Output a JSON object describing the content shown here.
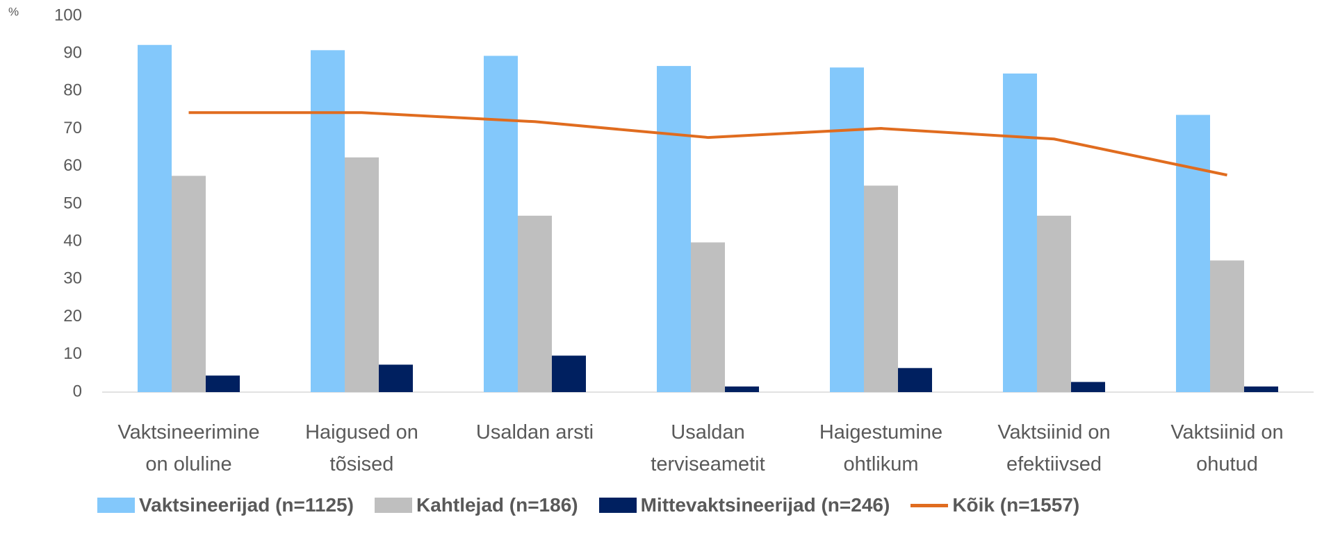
{
  "chart_data": {
    "type": "bar",
    "y_label": "%",
    "categories": [
      "Vaktsineerimine on oluline",
      "Haigused on tõsised",
      "Usaldan arsti",
      "Usaldan terviseametit",
      "Haigestumine ohtlikum",
      "Vaktsiinid on efektiivsed",
      "Vaktsiinid on ohutud"
    ],
    "series": [
      {
        "name": "Vaktsineerijad (n=1125)",
        "color": "#83c8fb",
        "values": [
          92.3,
          90.9,
          89.4,
          86.7,
          86.3,
          84.7,
          73.7
        ]
      },
      {
        "name": "Kahtlejad (n=186)",
        "color": "#bfbfbf",
        "values": [
          57.5,
          62.4,
          46.9,
          39.8,
          54.9,
          46.9,
          35
        ]
      },
      {
        "name": "Mittevaktsineerijad (n=246)",
        "color": "#002060",
        "values": [
          4.4,
          7.3,
          9.7,
          1.5,
          6.4,
          2.7,
          1.5
        ]
      },
      {
        "name": "Kõik (n=1557)",
        "color": "#e06c1f",
        "type": "line",
        "values": [
          74.3,
          74.3,
          71.9,
          67.7,
          70.1,
          67.3,
          57.7
        ]
      }
    ],
    "ylim": [
      0,
      100
    ],
    "yticks": [
      0,
      10,
      20,
      30,
      40,
      50,
      60,
      70,
      80,
      90,
      100
    ],
    "grid": false
  }
}
